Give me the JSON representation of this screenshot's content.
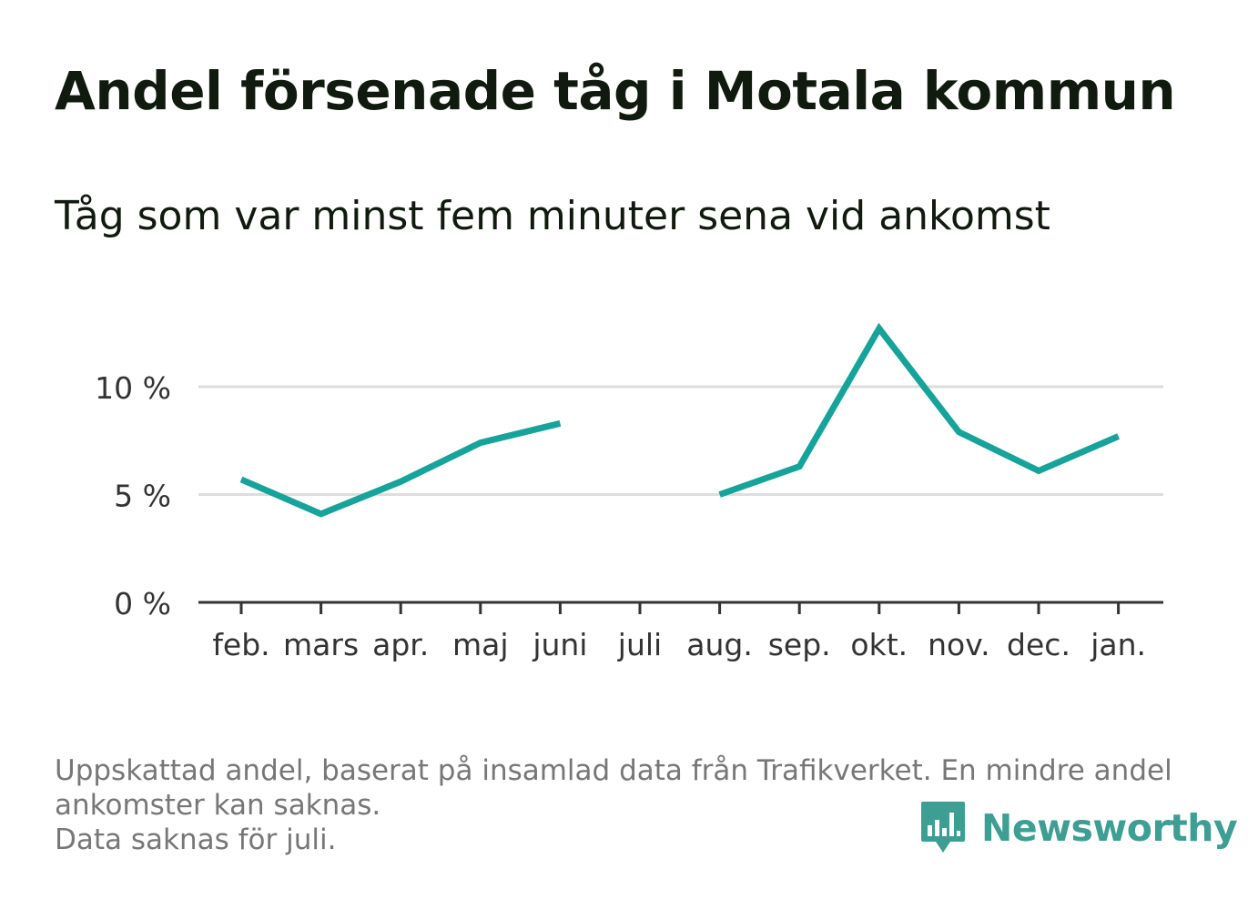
{
  "title": "Andel försenade tåg i Motala kommun",
  "subtitle": "Tåg som var minst fem minuter sena vid ankomst",
  "footnote": {
    "line1": "Uppskattad andel, baserat på insamlad data från Trafikverket. En mindre andel",
    "line2": "ankomster kan saknas.",
    "line3": "Data saknas för juli."
  },
  "logo": {
    "text": "Newsworthy",
    "icon": "bar-chart-speech-bubble-icon",
    "color": "#3d9e94"
  },
  "chart_data": {
    "type": "line",
    "categories": [
      "feb.",
      "mars",
      "apr.",
      "maj",
      "juni",
      "juli",
      "aug.",
      "sep.",
      "okt.",
      "nov.",
      "dec.",
      "jan."
    ],
    "series": [
      {
        "values": [
          5.7,
          4.1,
          5.6,
          7.4,
          8.3,
          null,
          5.0,
          6.3,
          12.7,
          7.9,
          6.1,
          7.7
        ],
        "color": "#16a39a"
      }
    ],
    "ylim": [
      0,
      13.5
    ],
    "yticks": [
      {
        "value": 0,
        "label": "0 %"
      },
      {
        "value": 5,
        "label": "5 %"
      },
      {
        "value": 10,
        "label": "10 %"
      }
    ],
    "grid": true,
    "xlabel": "",
    "ylabel": ""
  }
}
